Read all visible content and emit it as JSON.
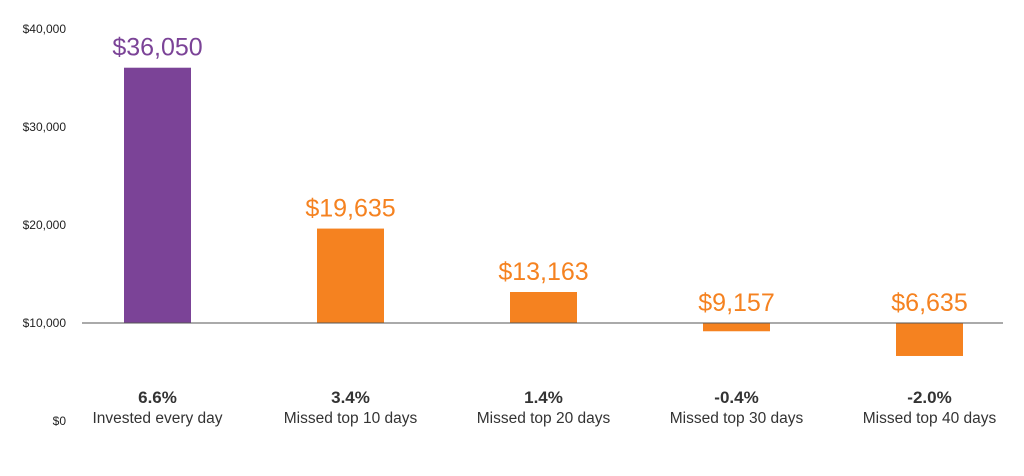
{
  "chart_data": {
    "type": "bar",
    "title": "",
    "xlabel": "",
    "ylabel": "",
    "baseline": 10000,
    "ylim": [
      0,
      40000
    ],
    "y_ticks": [
      {
        "value": 40000,
        "label": "$40,000"
      },
      {
        "value": 30000,
        "label": "$30,000"
      },
      {
        "value": 20000,
        "label": "$20,000"
      },
      {
        "value": 10000,
        "label": "$10,000"
      },
      {
        "value": 0,
        "label": "$0"
      }
    ],
    "grid": false,
    "bars": [
      {
        "category": "Invested every day",
        "return_label": "6.6%",
        "value": 36050,
        "value_label": "$36,050",
        "color": "#7b4397"
      },
      {
        "category": "Missed top 10 days",
        "return_label": "3.4%",
        "value": 19635,
        "value_label": "$19,635",
        "color": "#f58220"
      },
      {
        "category": "Missed top 20 days",
        "return_label": "1.4%",
        "value": 13163,
        "value_label": "$13,163",
        "color": "#f58220"
      },
      {
        "category": "Missed top 30 days",
        "return_label": "-0.4%",
        "value": 9157,
        "value_label": "$9,157",
        "color": "#f58220"
      },
      {
        "category": "Missed top 40 days",
        "return_label": "-2.0%",
        "value": 6635,
        "value_label": "$6,635",
        "color": "#f58220"
      }
    ],
    "baseline_color": "#555555"
  }
}
